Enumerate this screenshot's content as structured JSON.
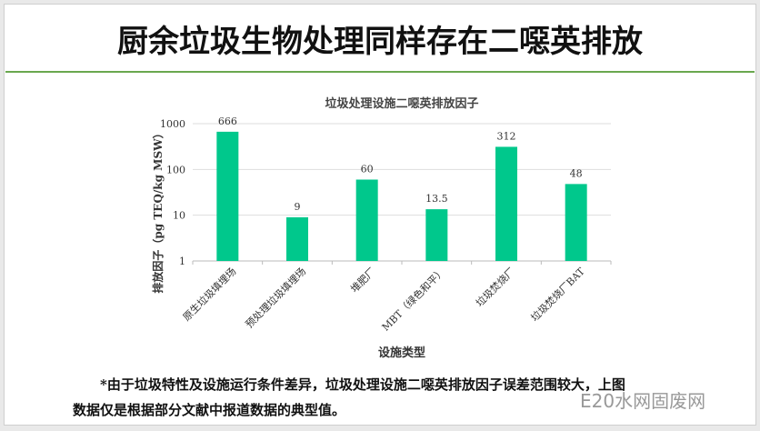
{
  "slide": {
    "title": "厨余垃圾生物处理同样存在二噁英排放",
    "note_line1": "*由于垃圾特性及设施运行条件差异，垃圾处理设施二噁英排放因子误差范围较大，上图",
    "note_line2": "数据仅是根据部分文献中报道数据的典型值。",
    "watermark": "E20水网固废网"
  },
  "chart_data": {
    "type": "bar",
    "title": "垃圾处理设施二噁英排放因子",
    "xlabel": "设施类型",
    "ylabel": "排放因子（pg TEQ/kg MSW）",
    "yscale": "log",
    "ylim": [
      1,
      1000
    ],
    "yticks": [
      "1",
      "10",
      "100",
      "1000"
    ],
    "grid": true,
    "categories": [
      "原生垃圾填埋场",
      "预处理垃圾填埋场",
      "堆肥厂",
      "MBT（绿色和平）",
      "垃圾焚烧厂",
      "垃圾焚烧厂BAT"
    ],
    "values": [
      666,
      9,
      60,
      13.5,
      312,
      48
    ],
    "data_labels": [
      "666",
      "9",
      "60",
      "13.5",
      "312",
      "48"
    ],
    "bar_color": "#00c88c"
  }
}
